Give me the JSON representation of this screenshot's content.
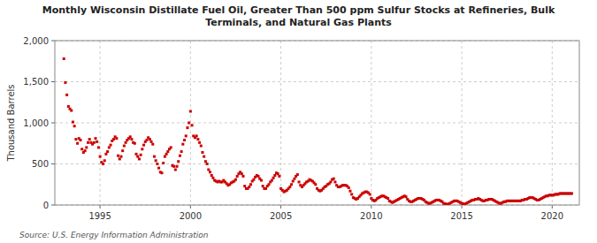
{
  "chart_data": {
    "type": "scatter",
    "title": "Monthly Wisconsin Distillate Fuel Oil, Greater Than 500 ppm Sulfur Stocks at Refineries, Bulk\nTerminals, and Natural Gas Plants",
    "ylabel": "Thousand Barrels",
    "source": "Source: U.S. Energy Information Administration",
    "color": "#cc0000",
    "marker": "square",
    "grid": true,
    "xlim": [
      1992.5,
      2021.5
    ],
    "ylim": [
      0,
      2000
    ],
    "xticks": [
      1995,
      2000,
      2005,
      2010,
      2015,
      2020
    ],
    "yticks": [
      0,
      500,
      {
        "value": 1000,
        "label": "1,000"
      },
      {
        "value": 1500,
        "label": "1,500"
      },
      {
        "value": 2000,
        "label": "2,000"
      }
    ],
    "x": [
      1993.0,
      1993.083,
      1993.167,
      1993.25,
      1993.333,
      1993.417,
      1993.5,
      1993.583,
      1993.667,
      1993.75,
      1993.833,
      1993.917,
      1994.0,
      1994.083,
      1994.167,
      1994.25,
      1994.333,
      1994.417,
      1994.5,
      1994.583,
      1994.667,
      1994.75,
      1994.833,
      1994.917,
      1995.0,
      1995.083,
      1995.167,
      1995.25,
      1995.333,
      1995.417,
      1995.5,
      1995.583,
      1995.667,
      1995.75,
      1995.833,
      1995.917,
      1996.0,
      1996.083,
      1996.167,
      1996.25,
      1996.333,
      1996.417,
      1996.5,
      1996.583,
      1996.667,
      1996.75,
      1996.833,
      1996.917,
      1997.0,
      1997.083,
      1997.167,
      1997.25,
      1997.333,
      1997.417,
      1997.5,
      1997.583,
      1997.667,
      1997.75,
      1997.833,
      1997.917,
      1998.0,
      1998.083,
      1998.167,
      1998.25,
      1998.333,
      1998.417,
      1998.5,
      1998.583,
      1998.667,
      1998.75,
      1998.833,
      1998.917,
      1999.0,
      1999.083,
      1999.167,
      1999.25,
      1999.333,
      1999.417,
      1999.5,
      1999.583,
      1999.667,
      1999.75,
      1999.833,
      1999.917,
      2000.0,
      2000.083,
      2000.167,
      2000.25,
      2000.333,
      2000.417,
      2000.5,
      2000.583,
      2000.667,
      2000.75,
      2000.833,
      2000.917,
      2001.0,
      2001.083,
      2001.167,
      2001.25,
      2001.333,
      2001.417,
      2001.5,
      2001.583,
      2001.667,
      2001.75,
      2001.833,
      2001.917,
      2002.0,
      2002.083,
      2002.167,
      2002.25,
      2002.333,
      2002.417,
      2002.5,
      2002.583,
      2002.667,
      2002.75,
      2002.833,
      2002.917,
      2003.0,
      2003.083,
      2003.167,
      2003.25,
      2003.333,
      2003.417,
      2003.5,
      2003.583,
      2003.667,
      2003.75,
      2003.833,
      2003.917,
      2004.0,
      2004.083,
      2004.167,
      2004.25,
      2004.333,
      2004.417,
      2004.5,
      2004.583,
      2004.667,
      2004.75,
      2004.833,
      2004.917,
      2005.0,
      2005.083,
      2005.167,
      2005.25,
      2005.333,
      2005.417,
      2005.5,
      2005.583,
      2005.667,
      2005.75,
      2005.833,
      2005.917,
      2006.0,
      2006.083,
      2006.167,
      2006.25,
      2006.333,
      2006.417,
      2006.5,
      2006.583,
      2006.667,
      2006.75,
      2006.833,
      2006.917,
      2007.0,
      2007.083,
      2007.167,
      2007.25,
      2007.333,
      2007.417,
      2007.5,
      2007.583,
      2007.667,
      2007.75,
      2007.833,
      2007.917,
      2008.0,
      2008.083,
      2008.167,
      2008.25,
      2008.333,
      2008.417,
      2008.5,
      2008.583,
      2008.667,
      2008.75,
      2008.833,
      2008.917,
      2009.0,
      2009.083,
      2009.167,
      2009.25,
      2009.333,
      2009.417,
      2009.5,
      2009.583,
      2009.667,
      2009.75,
      2009.833,
      2009.917,
      2010.0,
      2010.083,
      2010.167,
      2010.25,
      2010.333,
      2010.417,
      2010.5,
      2010.583,
      2010.667,
      2010.75,
      2010.833,
      2010.917,
      2011.0,
      2011.083,
      2011.167,
      2011.25,
      2011.333,
      2011.417,
      2011.5,
      2011.583,
      2011.667,
      2011.75,
      2011.833,
      2011.917,
      2012.0,
      2012.083,
      2012.167,
      2012.25,
      2012.333,
      2012.417,
      2012.5,
      2012.583,
      2012.667,
      2012.75,
      2012.833,
      2012.917,
      2013.0,
      2013.083,
      2013.167,
      2013.25,
      2013.333,
      2013.417,
      2013.5,
      2013.583,
      2013.667,
      2013.75,
      2013.833,
      2013.917,
      2014.0,
      2014.083,
      2014.167,
      2014.25,
      2014.333,
      2014.417,
      2014.5,
      2014.583,
      2014.667,
      2014.75,
      2014.833,
      2014.917,
      2015.0,
      2015.083,
      2015.167,
      2015.25,
      2015.333,
      2015.417,
      2015.5,
      2015.583,
      2015.667,
      2015.75,
      2015.833,
      2015.917,
      2016.0,
      2016.083,
      2016.167,
      2016.25,
      2016.333,
      2016.417,
      2016.5,
      2016.583,
      2016.667,
      2016.75,
      2016.833,
      2016.917,
      2017.0,
      2017.083,
      2017.167,
      2017.25,
      2017.333,
      2017.417,
      2017.5,
      2017.583,
      2017.667,
      2017.75,
      2017.833,
      2017.917,
      2018.0,
      2018.083,
      2018.167,
      2018.25,
      2018.333,
      2018.417,
      2018.5,
      2018.583,
      2018.667,
      2018.75,
      2018.833,
      2018.917,
      2019.0,
      2019.083,
      2019.167,
      2019.25,
      2019.333,
      2019.417,
      2019.5,
      2019.583,
      2019.667,
      2019.75,
      2019.833,
      2019.917,
      2020.0,
      2020.083,
      2020.167,
      2020.25,
      2020.333,
      2020.417,
      2020.5,
      2020.583,
      2020.667,
      2020.75,
      2020.833,
      2020.917,
      2021.0,
      2021.083
    ],
    "values": [
      1780,
      1490,
      1340,
      1200,
      1170,
      1150,
      1010,
      960,
      800,
      750,
      810,
      790,
      680,
      640,
      660,
      700,
      760,
      800,
      760,
      740,
      760,
      810,
      770,
      700,
      590,
      520,
      500,
      540,
      620,
      650,
      700,
      730,
      780,
      800,
      830,
      810,
      600,
      560,
      590,
      660,
      720,
      760,
      790,
      810,
      830,
      800,
      760,
      750,
      620,
      590,
      560,
      610,
      680,
      730,
      770,
      790,
      820,
      800,
      770,
      740,
      590,
      540,
      500,
      450,
      400,
      390,
      510,
      590,
      620,
      650,
      680,
      700,
      480,
      470,
      430,
      470,
      530,
      600,
      650,
      740,
      790,
      840,
      940,
      1000,
      1140,
      970,
      840,
      820,
      840,
      800,
      760,
      720,
      640,
      590,
      530,
      500,
      430,
      400,
      360,
      330,
      300,
      290,
      280,
      290,
      280,
      280,
      300,
      280,
      260,
      240,
      250,
      270,
      280,
      290,
      310,
      350,
      380,
      400,
      380,
      350,
      230,
      200,
      200,
      220,
      250,
      290,
      310,
      340,
      360,
      350,
      320,
      300,
      230,
      200,
      200,
      230,
      250,
      280,
      300,
      330,
      360,
      390,
      380,
      350,
      200,
      180,
      160,
      170,
      180,
      200,
      220,
      250,
      290,
      320,
      350,
      370,
      280,
      240,
      220,
      240,
      260,
      280,
      290,
      310,
      300,
      290,
      270,
      250,
      200,
      180,
      170,
      180,
      200,
      220,
      230,
      250,
      260,
      280,
      310,
      320,
      280,
      240,
      220,
      220,
      230,
      240,
      240,
      240,
      230,
      210,
      170,
      130,
      90,
      80,
      70,
      80,
      100,
      120,
      140,
      150,
      160,
      160,
      150,
      130,
      80,
      60,
      50,
      60,
      80,
      90,
      100,
      110,
      110,
      100,
      90,
      80,
      50,
      40,
      30,
      40,
      50,
      60,
      70,
      80,
      90,
      100,
      110,
      100,
      70,
      50,
      40,
      40,
      50,
      60,
      70,
      80,
      80,
      80,
      70,
      60,
      40,
      30,
      20,
      20,
      30,
      40,
      50,
      60,
      60,
      60,
      50,
      40,
      20,
      15,
      10,
      10,
      20,
      30,
      40,
      50,
      50,
      50,
      40,
      30,
      20,
      15,
      10,
      20,
      30,
      40,
      50,
      60,
      60,
      70,
      70,
      80,
      70,
      60,
      50,
      50,
      60,
      60,
      70,
      70,
      70,
      60,
      50,
      40,
      30,
      20,
      20,
      30,
      40,
      40,
      50,
      50,
      50,
      50,
      50,
      50,
      50,
      50,
      50,
      50,
      60,
      60,
      70,
      70,
      80,
      90,
      90,
      90,
      80,
      70,
      60,
      60,
      70,
      80,
      90,
      100,
      110,
      110,
      120,
      120,
      120,
      120,
      130,
      130,
      130,
      140,
      140,
      140,
      140,
      140,
      140,
      140,
      140,
      140
    ]
  }
}
